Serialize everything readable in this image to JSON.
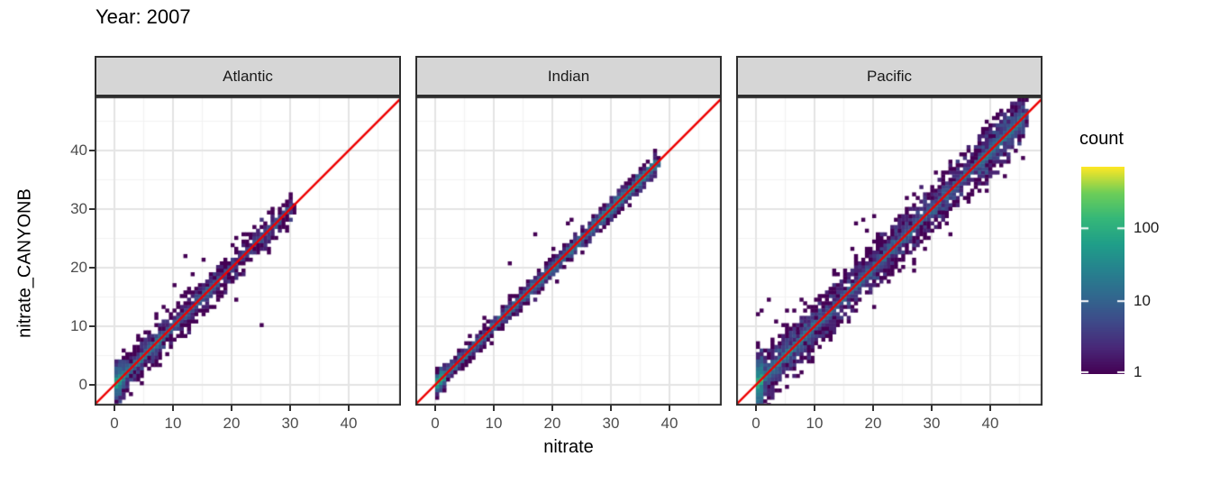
{
  "title": "Year: 2007",
  "chart_data": {
    "type": "heatmap",
    "subtype": "bin2d_faceted_scatter_density",
    "title": "Year: 2007",
    "xlabel": "nitrate",
    "ylabel": "nitrate_CANYONB",
    "x_ticks": [
      0,
      10,
      20,
      30,
      40
    ],
    "y_ticks": [
      0,
      10,
      20,
      30,
      40
    ],
    "x_minor": [
      5,
      15,
      25,
      35,
      45
    ],
    "y_minor": [
      5,
      15,
      25,
      35,
      45
    ],
    "xlim": [
      -3.4,
      48.9
    ],
    "ylim": [
      -3.5,
      49.2
    ],
    "binwidth": 0.62,
    "identity_line_color": "#ee0000",
    "grid": {
      "major_color": "#e4e4e4",
      "minor_color": "#f2f2f2",
      "background": "#ffffff"
    },
    "panel_border_color": "#2e2e2e",
    "strip": {
      "fill": "#d6d6d6",
      "border": "#2e2e2e",
      "text_color": "#1a1a1a"
    },
    "axis_text_color": "#4d4d4d",
    "tick_mark_color": "#333333",
    "legend": {
      "title": "count",
      "ticks": [
        100,
        10,
        1
      ],
      "scale": "log10",
      "max": 700,
      "colormap": "viridis",
      "stops": [
        [
          0.0,
          "#440154"
        ],
        [
          0.125,
          "#482878"
        ],
        [
          0.25,
          "#3e4a89"
        ],
        [
          0.375,
          "#31688e"
        ],
        [
          0.5,
          "#26828e"
        ],
        [
          0.625,
          "#1f9e89"
        ],
        [
          0.75,
          "#35b779"
        ],
        [
          0.875,
          "#6ece58"
        ],
        [
          1.0,
          "#fde725"
        ]
      ]
    },
    "facets": [
      {
        "name": "Atlantic",
        "seed": 101,
        "n": 2600,
        "diagonal_range": [
          0,
          30.5
        ],
        "segments": [
          [
            0,
            1.5,
            0.28
          ],
          [
            1.5,
            8,
            0.3
          ],
          [
            8,
            18,
            0.24
          ],
          [
            18,
            30.5,
            0.18
          ]
        ],
        "noise": {
          "core_sd": 0.3,
          "core_frac": 0.55,
          "tail_sd": 1.5
        },
        "outliers": [
          [
            12,
            22
          ],
          [
            25,
            10.3
          ],
          [
            20.5,
            14.5
          ],
          [
            24,
            27
          ],
          [
            15,
            21.5
          ],
          [
            10.5,
            17
          ],
          [
            4,
            8.2
          ],
          [
            8.5,
            13.2
          ],
          [
            13.5,
            19
          ],
          [
            22,
            25.5
          ]
        ]
      },
      {
        "name": "Indian",
        "seed": 202,
        "n": 4200,
        "diagonal_range": [
          0,
          38
        ],
        "segments": [
          [
            0,
            1.5,
            0.18
          ],
          [
            1.5,
            15,
            0.22
          ],
          [
            15,
            28,
            0.26
          ],
          [
            28,
            38,
            0.34
          ]
        ],
        "noise": {
          "core_sd": 0.2,
          "core_frac": 0.6,
          "tail_sd": 0.8
        },
        "outliers": [
          [
            17,
            26
          ],
          [
            13,
            21
          ],
          [
            21,
            17.8
          ],
          [
            25,
            22.5
          ],
          [
            22.5,
            27.5
          ],
          [
            23.5,
            28
          ]
        ]
      },
      {
        "name": "Pacific",
        "seed": 303,
        "n": 6500,
        "diagonal_range": [
          0,
          46
        ],
        "segments": [
          [
            0,
            1.2,
            0.18
          ],
          [
            1.2,
            10,
            0.22
          ],
          [
            10,
            25,
            0.22
          ],
          [
            25,
            38,
            0.18
          ],
          [
            38,
            46,
            0.2
          ]
        ],
        "noise": {
          "core_sd": 0.25,
          "core_frac": 0.5,
          "tail_sd": 2.0
        },
        "outliers": [
          [
            0.6,
            11.8
          ],
          [
            3.4,
            10.8
          ],
          [
            5.2,
            12.6
          ],
          [
            2,
            14.8
          ],
          [
            1.2,
            13
          ],
          [
            8,
            14.5
          ],
          [
            6.5,
            13
          ],
          [
            17,
            27.7
          ],
          [
            18.5,
            28.3
          ],
          [
            20,
            28.8
          ],
          [
            19,
            26.5
          ],
          [
            25,
            20
          ],
          [
            27,
            21.5
          ],
          [
            29,
            23
          ],
          [
            26,
            30
          ],
          [
            36,
            31
          ],
          [
            40,
            35.5
          ],
          [
            41,
            36.3
          ],
          [
            33,
            37.5
          ]
        ]
      }
    ]
  }
}
